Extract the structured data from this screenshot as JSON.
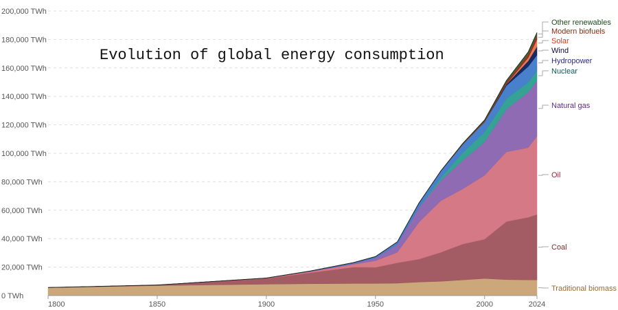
{
  "chart_data": {
    "type": "area",
    "stacked": true,
    "title": "Evolution of global energy consumption",
    "xlabel": "",
    "ylabel": "",
    "unit": "TWh",
    "ylim": [
      0,
      200000
    ],
    "xlim": [
      1800,
      2024
    ],
    "grid": true,
    "legend_placement": "right (inline labels)",
    "x_ticks": [
      "1800",
      "1850",
      "1900",
      "1950",
      "2000",
      "2024"
    ],
    "y_ticks": [
      "0 TWh",
      "20,000 TWh",
      "40,000 TWh",
      "60,000 TWh",
      "80,000 TWh",
      "100,000 TWh",
      "120,000 TWh",
      "140,000 TWh",
      "160,000 TWh",
      "180,000 TWh",
      "200,000 TWh"
    ],
    "x": [
      1800,
      1850,
      1900,
      1920,
      1940,
      1950,
      1960,
      1970,
      1980,
      1990,
      2000,
      2010,
      2020,
      2024
    ],
    "series": [
      {
        "name": "Traditional biomass",
        "color": "#c9a273",
        "label_color": "#9a6a30",
        "values": [
          5600,
          7000,
          8000,
          8300,
          8500,
          8500,
          8700,
          9500,
          10000,
          11000,
          12000,
          11200,
          11000,
          11000
        ]
      },
      {
        "name": "Coal",
        "color": "#9e535b",
        "label_color": "#7a2a2a",
        "values": [
          50,
          400,
          4000,
          7700,
          11500,
          11300,
          14300,
          16100,
          20400,
          25200,
          27600,
          40800,
          44000,
          46000
        ]
      },
      {
        "name": "Oil",
        "color": "#d2727e",
        "label_color": "#a0203a",
        "values": [
          0,
          0,
          300,
          800,
          2000,
          4700,
          7400,
          26100,
          36300,
          38800,
          44900,
          49000,
          49000,
          55000
        ]
      },
      {
        "name": "Natural gas",
        "color": "#8963b0",
        "label_color": "#5a2a8a",
        "values": [
          0,
          0,
          0,
          200,
          700,
          2000,
          5600,
          10300,
          14300,
          20000,
          23500,
          30000,
          39000,
          39000
        ]
      },
      {
        "name": "Nuclear",
        "color": "#2a9d8f",
        "label_color": "#0a5a5a",
        "values": [
          0,
          0,
          0,
          0,
          0,
          0,
          0,
          200,
          2000,
          5500,
          7000,
          7500,
          7000,
          7000
        ]
      },
      {
        "name": "Hydropower",
        "color": "#3f79c8",
        "label_color": "#2a2a9a",
        "values": [
          0,
          0,
          0,
          200,
          500,
          900,
          1700,
          3000,
          4500,
          5700,
          7000,
          9000,
          11000,
          11000
        ]
      },
      {
        "name": "Wind",
        "color": "#0d1f5a",
        "label_color": "#0a0a3a",
        "values": [
          0,
          0,
          0,
          0,
          0,
          0,
          0,
          0,
          0,
          0,
          100,
          1000,
          4000,
          6000
        ]
      },
      {
        "name": "Solar",
        "color": "#e8744a",
        "label_color": "#d03a1a",
        "values": [
          0,
          0,
          0,
          0,
          0,
          0,
          0,
          0,
          0,
          0,
          0,
          100,
          2200,
          5000
        ]
      },
      {
        "name": "Modern biofuels",
        "color": "#8b2a1a",
        "label_color": "#8a2a10",
        "values": [
          0,
          0,
          0,
          0,
          0,
          0,
          0,
          0,
          0,
          300,
          600,
          1500,
          2500,
          3000
        ]
      },
      {
        "name": "Other renewables",
        "color": "#2e6b2a",
        "label_color": "#1a4a1a",
        "values": [
          0,
          0,
          0,
          0,
          0,
          0,
          0,
          0,
          200,
          400,
          700,
          1000,
          1500,
          1800
        ]
      }
    ]
  }
}
